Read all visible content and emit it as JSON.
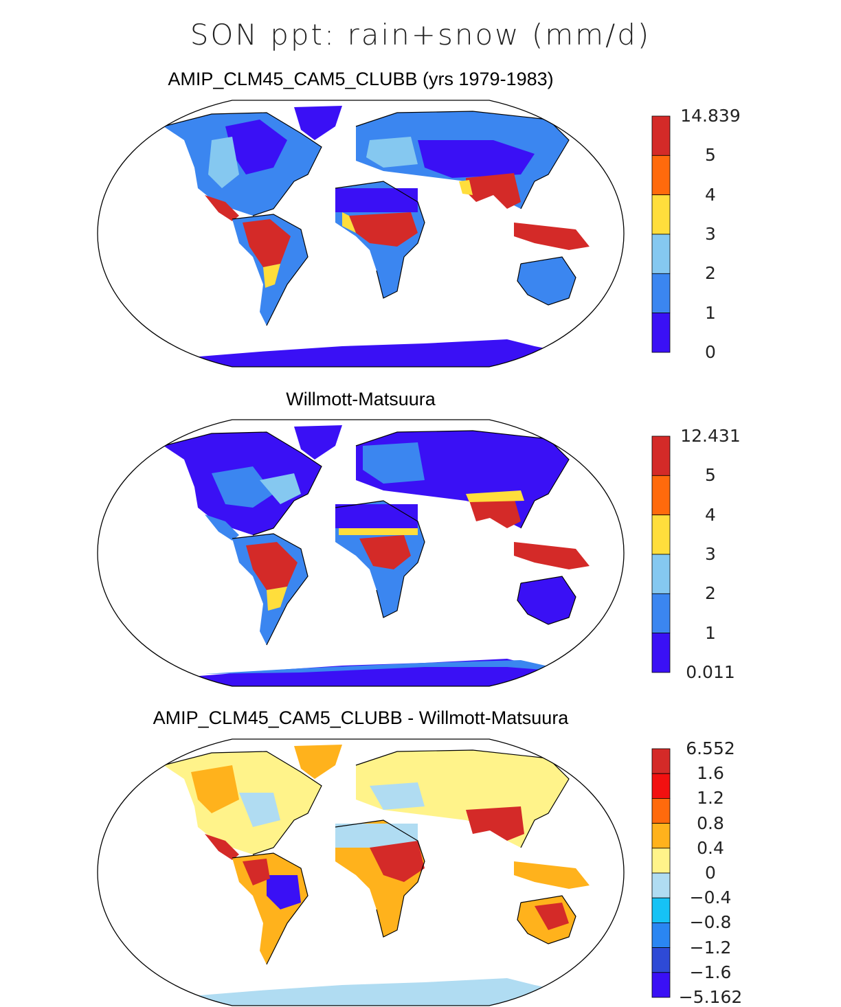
{
  "figure": {
    "title": "SON ppt: rain+snow (mm/d)"
  },
  "panels": [
    {
      "title": "AMIP_CLM45_CAM5_CLUBB (yrs 1979-1983)",
      "colorbar": {
        "labels": [
          "14.839",
          "5",
          "4",
          "3",
          "2",
          "1",
          "0"
        ],
        "colors": [
          "#d42a28",
          "#ff6a0c",
          "#ffde3c",
          "#85c8f0",
          "#3b86f0",
          "#3a10f5"
        ]
      }
    },
    {
      "title": "Willmott-Matsuura",
      "colorbar": {
        "labels": [
          "12.431",
          "5",
          "4",
          "3",
          "2",
          "1",
          "0.011"
        ],
        "colors": [
          "#d42a28",
          "#ff6a0c",
          "#ffde3c",
          "#85c8f0",
          "#3b86f0",
          "#3a10f5"
        ]
      }
    },
    {
      "title": "AMIP_CLM45_CAM5_CLUBB - Willmott-Matsuura",
      "colorbar": {
        "labels": [
          "6.552",
          "1.6",
          "1.2",
          "0.8",
          "0.4",
          "0",
          "−0.4",
          "−0.8",
          "−1.2",
          "−1.6",
          "−5.162"
        ],
        "colors": [
          "#d42a28",
          "#f21010",
          "#ff6a0c",
          "#ffb21c",
          "#fff38a",
          "#b0dcf2",
          "#16c2f5",
          "#2a86f2",
          "#2e4ad6",
          "#3a10f5"
        ]
      }
    }
  ]
}
